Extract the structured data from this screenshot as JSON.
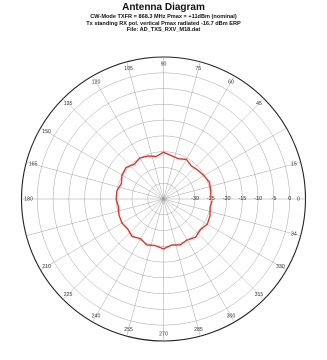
{
  "title": "Antenna Diagram",
  "subtitle_lines": [
    "CW-Mode  TXFR = 868.3 MHz Pmax = +11dBm (nominal)",
    "Tx standing RX pol. vertical Pmax radiated -16.7 dBm ERP",
    "File: AD_TXS_RXV_M18.dat"
  ],
  "chart_data": {
    "type": "polar",
    "title": "Antenna Diagram",
    "angle_ticks": [
      0,
      15,
      30,
      45,
      60,
      75,
      90,
      105,
      120,
      135,
      150,
      165,
      180,
      195,
      210,
      225,
      240,
      255,
      270,
      285,
      300,
      315,
      330,
      345
    ],
    "angle_labels_shown": [
      "0",
      "15",
      "45",
      "60",
      "75",
      "90",
      "105",
      "120",
      "135",
      "150",
      "165",
      "180",
      "210",
      "225",
      "240",
      "255",
      "270",
      "285",
      "300",
      "315",
      "34"
    ],
    "radial_range_dBm": [
      -40,
      5
    ],
    "radial_ticks": [
      -30,
      -25,
      -20,
      -15,
      -10,
      -5,
      0
    ],
    "radial_labels": [
      "-30",
      "-25",
      "-20",
      "-15",
      "-10",
      "-5",
      "0"
    ],
    "grid": true,
    "series": [
      {
        "color": "#e8332a",
        "points": [
          [
            0,
            -25.0
          ],
          [
            10,
            -24.8
          ],
          [
            20,
            -24.5
          ],
          [
            30,
            -25.2
          ],
          [
            40,
            -25.8
          ],
          [
            50,
            -26.3
          ],
          [
            60,
            -25.5
          ],
          [
            70,
            -26.4
          ],
          [
            80,
            -26.0
          ],
          [
            90,
            -25.2
          ],
          [
            100,
            -26.3
          ],
          [
            110,
            -25.5
          ],
          [
            120,
            -25.0
          ],
          [
            130,
            -25.6
          ],
          [
            140,
            -24.5
          ],
          [
            150,
            -24.8
          ],
          [
            160,
            -25.8
          ],
          [
            170,
            -25.0
          ],
          [
            180,
            -25.0
          ],
          [
            190,
            -25.5
          ],
          [
            200,
            -25.0
          ],
          [
            210,
            -24.8
          ],
          [
            220,
            -25.2
          ],
          [
            230,
            -24.5
          ],
          [
            240,
            -25.5
          ],
          [
            250,
            -24.5
          ],
          [
            260,
            -25.0
          ],
          [
            270,
            -24.2
          ],
          [
            280,
            -25.2
          ],
          [
            290,
            -24.5
          ],
          [
            300,
            -25.0
          ],
          [
            310,
            -24.2
          ],
          [
            320,
            -24.8
          ],
          [
            330,
            -24.0
          ],
          [
            340,
            -24.3
          ],
          [
            350,
            -25.0
          ],
          [
            358,
            -24.6
          ]
        ]
      }
    ],
    "colors": {
      "trace": "#e8332a",
      "grid": "#9a9a9a",
      "outer_circle": "#222222"
    }
  }
}
